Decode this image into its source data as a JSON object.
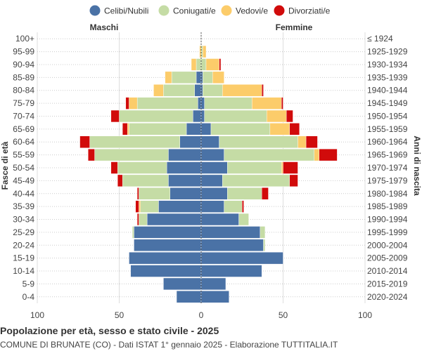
{
  "chart_data": {
    "type": "bar",
    "orientation": "horizontal-pyramid",
    "title": "Popolazione per età, sesso e stato civile - 2025",
    "subtitle": "COMUNE DI BRUNATE (CO) - Dati ISTAT 1° gennaio 2025 - Elaborazione TUTTITALIA.IT",
    "left_label": "Maschi",
    "right_label": "Femmine",
    "ylabel_left": "Fasce di età",
    "ylabel_right": "Anni di nascita",
    "xlim": [
      -100,
      100
    ],
    "xticks": [
      "100",
      "50",
      "0",
      "50",
      "100"
    ],
    "legend_position": "top",
    "grid": true,
    "age_groups": [
      "100+",
      "95-99",
      "90-94",
      "85-89",
      "80-84",
      "75-79",
      "70-74",
      "65-69",
      "60-64",
      "55-59",
      "50-54",
      "45-49",
      "40-44",
      "35-39",
      "30-34",
      "25-29",
      "20-24",
      "15-19",
      "10-14",
      "5-9",
      "0-4"
    ],
    "birth_years": [
      "≤ 1924",
      "1925-1929",
      "1930-1934",
      "1935-1939",
      "1940-1944",
      "1945-1949",
      "1950-1954",
      "1955-1959",
      "1960-1964",
      "1965-1969",
      "1970-1974",
      "1975-1979",
      "1980-1984",
      "1985-1989",
      "1990-1994",
      "1995-1999",
      "2000-2004",
      "2005-2009",
      "2010-2014",
      "2015-2019",
      "2020-2024"
    ],
    "series": [
      {
        "name": "Celibi/Nubili",
        "color": "#4a72a6",
        "male": [
          0,
          0,
          0,
          3,
          4,
          2,
          5,
          9,
          13,
          20,
          21,
          20,
          19,
          26,
          33,
          41,
          41,
          44,
          43,
          23,
          15
        ],
        "female": [
          0,
          0,
          0,
          1,
          1,
          2,
          2,
          6,
          11,
          14,
          16,
          13,
          16,
          14,
          23,
          36,
          38,
          50,
          37,
          15,
          17
        ]
      },
      {
        "name": "Coniugati/e",
        "color": "#c5dca5",
        "male": [
          0,
          0,
          3,
          15,
          19,
          37,
          45,
          35,
          55,
          45,
          30,
          28,
          19,
          11,
          5,
          1,
          0,
          0,
          0,
          0,
          0
        ],
        "female": [
          0,
          1,
          3,
          6,
          12,
          29,
          38,
          36,
          48,
          55,
          33,
          41,
          21,
          11,
          6,
          3,
          1,
          0,
          0,
          0,
          0
        ]
      },
      {
        "name": "Vedovi/e",
        "color": "#fccc6a",
        "male": [
          0,
          1,
          3,
          4,
          6,
          5,
          0,
          1,
          0,
          0,
          0,
          0,
          0,
          1,
          0,
          0,
          0,
          0,
          0,
          0,
          0
        ],
        "female": [
          0,
          2,
          8,
          7,
          24,
          18,
          12,
          12,
          5,
          3,
          1,
          0,
          0,
          0,
          0,
          0,
          0,
          0,
          0,
          0,
          0
        ],
        "note_unused": ""
      },
      {
        "name": "Divorziati/e",
        "color": "#d10b0b",
        "male": [
          0,
          0,
          0,
          0,
          0,
          2,
          5,
          3,
          6,
          4,
          4,
          3,
          1,
          2,
          1,
          0,
          0,
          0,
          0,
          0,
          0
        ],
        "female": [
          0,
          0,
          1,
          0,
          1,
          1,
          4,
          6,
          7,
          11,
          9,
          5,
          4,
          1,
          0,
          0,
          0,
          0,
          0,
          0,
          0
        ]
      }
    ]
  }
}
